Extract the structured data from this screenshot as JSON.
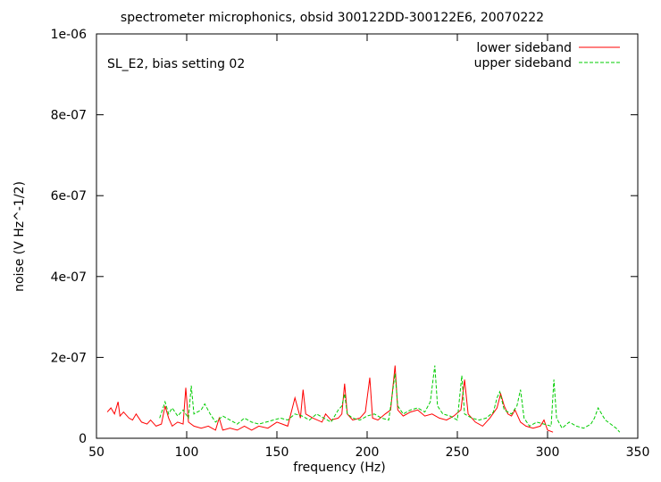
{
  "chart_data": {
    "type": "line",
    "title": "spectrometer microphonics, obsid 300122DD-300122E6, 20070222",
    "annotation": "SL_E2, bias setting 02",
    "xlabel": "frequency (Hz)",
    "ylabel": "noise (V Hz^-1/2)",
    "xlim": [
      50,
      350
    ],
    "ylim": [
      0,
      1e-06
    ],
    "x_ticks": [
      50,
      100,
      150,
      200,
      250,
      300,
      350
    ],
    "x_tick_labels": [
      "50",
      "100",
      "150",
      "200",
      "250",
      "300",
      "350"
    ],
    "y_ticks": [
      0,
      2e-07,
      4e-07,
      6e-07,
      8e-07,
      1e-06
    ],
    "y_tick_labels": [
      "0",
      "2e-07",
      "4e-07",
      "6e-07",
      "8e-07",
      "1e-06"
    ],
    "grid": false,
    "legend_position": "top-right",
    "series": [
      {
        "name": "lower sideband",
        "color": "#ff0000",
        "dash": "solid",
        "x": [
          56,
          58,
          60,
          62,
          63,
          65,
          68,
          70,
          72,
          75,
          78,
          80,
          83,
          86,
          88,
          90,
          92,
          95,
          98,
          99.5,
          101,
          104,
          108,
          112,
          116,
          118,
          120,
          124,
          128,
          132,
          136,
          140,
          145,
          150,
          153,
          156,
          160,
          163,
          164.5,
          166,
          170,
          175,
          177,
          180,
          184,
          186,
          187.5,
          189,
          192,
          196,
          199,
          201.5,
          203,
          206,
          210,
          213,
          215.5,
          217,
          220,
          224,
          228,
          232,
          236,
          240,
          244,
          248,
          252,
          254,
          256,
          260,
          264,
          268,
          272,
          274,
          276,
          278,
          280,
          282,
          285,
          288,
          292,
          296,
          298,
          300,
          303
        ],
        "y": [
          6.5e-08,
          7.5e-08,
          6e-08,
          9e-08,
          5.5e-08,
          6.5e-08,
          5e-08,
          4.5e-08,
          6e-08,
          4e-08,
          3.5e-08,
          4.5e-08,
          3e-08,
          3.5e-08,
          8e-08,
          5e-08,
          3e-08,
          4e-08,
          3.5e-08,
          1.25e-07,
          4e-08,
          3e-08,
          2.5e-08,
          3e-08,
          2e-08,
          5e-08,
          2e-08,
          2.5e-08,
          2e-08,
          3e-08,
          2e-08,
          3e-08,
          2.5e-08,
          4e-08,
          3.5e-08,
          3e-08,
          1e-07,
          5e-08,
          1.2e-07,
          6e-08,
          5e-08,
          4e-08,
          6e-08,
          4.5e-08,
          5e-08,
          6e-08,
          1.35e-07,
          6e-08,
          4.5e-08,
          5e-08,
          6.5e-08,
          1.5e-07,
          5e-08,
          4.5e-08,
          6e-08,
          7e-08,
          1.8e-07,
          7e-08,
          5.5e-08,
          6.5e-08,
          7e-08,
          5.5e-08,
          6e-08,
          5e-08,
          4.5e-08,
          5.5e-08,
          7e-08,
          1.45e-07,
          6e-08,
          4e-08,
          3e-08,
          5e-08,
          7.5e-08,
          1.1e-07,
          8e-08,
          6e-08,
          5.5e-08,
          7e-08,
          4e-08,
          3e-08,
          2.5e-08,
          3e-08,
          4.5e-08,
          2e-08,
          1.5e-08
        ]
      },
      {
        "name": "upper sideband",
        "color": "#00cc00",
        "dash": "dashed",
        "x": [
          85,
          88,
          90,
          92,
          95,
          98,
          101,
          102.5,
          104,
          108,
          110,
          113,
          116,
          120,
          124,
          128,
          132,
          136,
          140,
          144,
          148,
          152,
          156,
          160,
          164,
          168,
          172,
          176,
          180,
          184,
          186,
          187.5,
          189,
          192,
          196,
          200,
          204,
          208,
          212,
          215.5,
          217,
          220,
          224,
          228,
          232,
          235,
          237.5,
          239,
          242,
          246,
          250,
          252.5,
          254,
          258,
          262,
          266,
          270,
          272,
          273.5,
          276,
          280,
          283,
          285,
          287,
          290,
          294,
          298,
          302,
          303.5,
          305,
          308,
          312,
          316,
          320,
          324,
          326,
          328,
          330,
          332,
          335,
          338,
          340
        ],
        "y": [
          5e-08,
          9e-08,
          6e-08,
          7.5e-08,
          5.5e-08,
          7e-08,
          5e-08,
          1.3e-07,
          6e-08,
          7e-08,
          8.5e-08,
          6e-08,
          4e-08,
          5.5e-08,
          4.5e-08,
          3.5e-08,
          5e-08,
          4e-08,
          3.5e-08,
          4e-08,
          4.5e-08,
          5e-08,
          4.5e-08,
          6e-08,
          5.5e-08,
          4.5e-08,
          6e-08,
          5e-08,
          4e-08,
          7e-08,
          8e-08,
          1.1e-07,
          6e-08,
          5e-08,
          4.5e-08,
          5.5e-08,
          6e-08,
          5e-08,
          4.5e-08,
          1.6e-07,
          8e-08,
          6e-08,
          7e-08,
          7.5e-08,
          6.5e-08,
          9e-08,
          1.8e-07,
          8e-08,
          6e-08,
          5.5e-08,
          4.5e-08,
          1.55e-07,
          6e-08,
          5e-08,
          4.5e-08,
          5e-08,
          6.5e-08,
          1e-07,
          1.15e-07,
          7e-08,
          6e-08,
          8e-08,
          1.2e-07,
          5e-08,
          3e-08,
          4e-08,
          3.5e-08,
          3e-08,
          1.45e-07,
          5e-08,
          2.5e-08,
          4e-08,
          3e-08,
          2.5e-08,
          3.5e-08,
          5e-08,
          7.5e-08,
          6e-08,
          4.5e-08,
          3.5e-08,
          2.5e-08,
          1.5e-08
        ]
      }
    ]
  }
}
